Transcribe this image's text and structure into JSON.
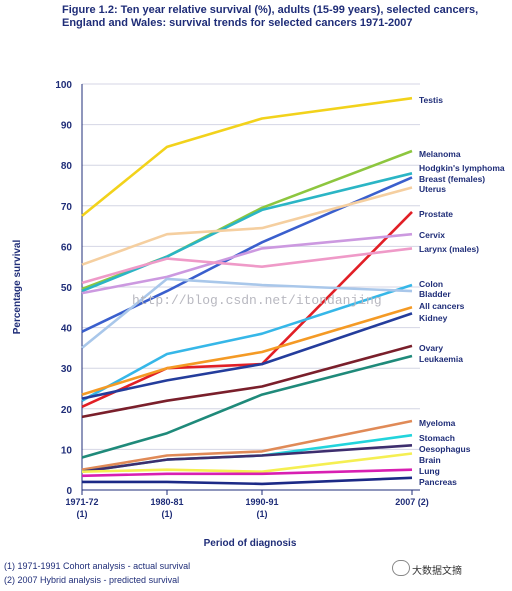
{
  "title": "Figure 1.2: Ten year relative survival (%), adults (15-99 years), selected cancers, England and Wales: survival trends for selected cancers 1971-2007",
  "footnotes": [
    "(1) 1971-1991 Cohort analysis - actual survival",
    "(2) 2007 Hybrid analysis - predicted survival"
  ],
  "watermark": "http://blog.csdn.net/itondanjing",
  "brand": "大数据文摘",
  "brand_icon": "wechat-icon",
  "chart_data": {
    "type": "line",
    "xlabel": "Period of diagnosis",
    "ylabel": "Percentage survival",
    "ylim": [
      0,
      100
    ],
    "yticks": [
      0,
      10,
      20,
      30,
      40,
      50,
      60,
      70,
      80,
      90,
      100
    ],
    "grid": true,
    "categories": [
      "1971-72",
      "1980-81",
      "1990-91",
      "2007"
    ],
    "category_footnotes": [
      "(1)",
      "(1)",
      "(1)",
      "(2)"
    ],
    "series": [
      {
        "name": "Testis",
        "color": "#f2d21b",
        "values": [
          67.5,
          84.5,
          91.5,
          96.5
        ]
      },
      {
        "name": "Melanoma",
        "color": "#8dc63f",
        "values": [
          49.5,
          57.5,
          69.5,
          83.5
        ]
      },
      {
        "name": "Hodgkin's lymphoma",
        "color": "#2bb5c5",
        "values": [
          49,
          57.5,
          69,
          78
        ]
      },
      {
        "name": "Breast (females)",
        "color": "#3a5fcd",
        "values": [
          39,
          49,
          61,
          77
        ]
      },
      {
        "name": "Uterus",
        "color": "#f5cfa0",
        "values": [
          55.5,
          63,
          64.5,
          74.5
        ]
      },
      {
        "name": "Prostate",
        "color": "#e11f26",
        "values": [
          20.5,
          30,
          31,
          68.5
        ]
      },
      {
        "name": "Cervix",
        "color": "#cc99e0",
        "values": [
          48.5,
          52.5,
          59.5,
          63
        ]
      },
      {
        "name": "Larynx (males)",
        "color": "#ef9ac8",
        "values": [
          51,
          57,
          55,
          59.5
        ]
      },
      {
        "name": "Colon",
        "color": "#36b7e8",
        "values": [
          22,
          33.5,
          38.5,
          50.5
        ]
      },
      {
        "name": "Bladder",
        "color": "#a9c7ea",
        "values": [
          35,
          52,
          50.5,
          49
        ]
      },
      {
        "name": "All cancers",
        "color": "#f49a25",
        "values": [
          23.5,
          30,
          34,
          45
        ]
      },
      {
        "name": "Kidney",
        "color": "#243d9c",
        "values": [
          22.5,
          27,
          31,
          43.5
        ]
      },
      {
        "name": "Ovary",
        "color": "#7a1f2b",
        "values": [
          18,
          22,
          25.5,
          35.5
        ]
      },
      {
        "name": "Leukaemia",
        "color": "#1f8a7a",
        "values": [
          8,
          14,
          23.5,
          33
        ]
      },
      {
        "name": "Myeloma",
        "color": "#e08a57",
        "values": [
          5,
          8.5,
          9.5,
          17
        ]
      },
      {
        "name": "Stomach",
        "color": "#22d4dc",
        "values": [
          4.5,
          7.5,
          8.5,
          13.5
        ]
      },
      {
        "name": "Oesophagus",
        "color": "#3d2e6e",
        "values": [
          4.5,
          7.5,
          8.5,
          11
        ]
      },
      {
        "name": "Brain",
        "color": "#f5ef52",
        "values": [
          4.5,
          5,
          4.5,
          9
        ]
      },
      {
        "name": "Lung",
        "color": "#d81fb2",
        "values": [
          3.5,
          4,
          4,
          5
        ]
      },
      {
        "name": "Pancreas",
        "color": "#1c2a86",
        "values": [
          2,
          2,
          1.5,
          3
        ]
      }
    ]
  }
}
